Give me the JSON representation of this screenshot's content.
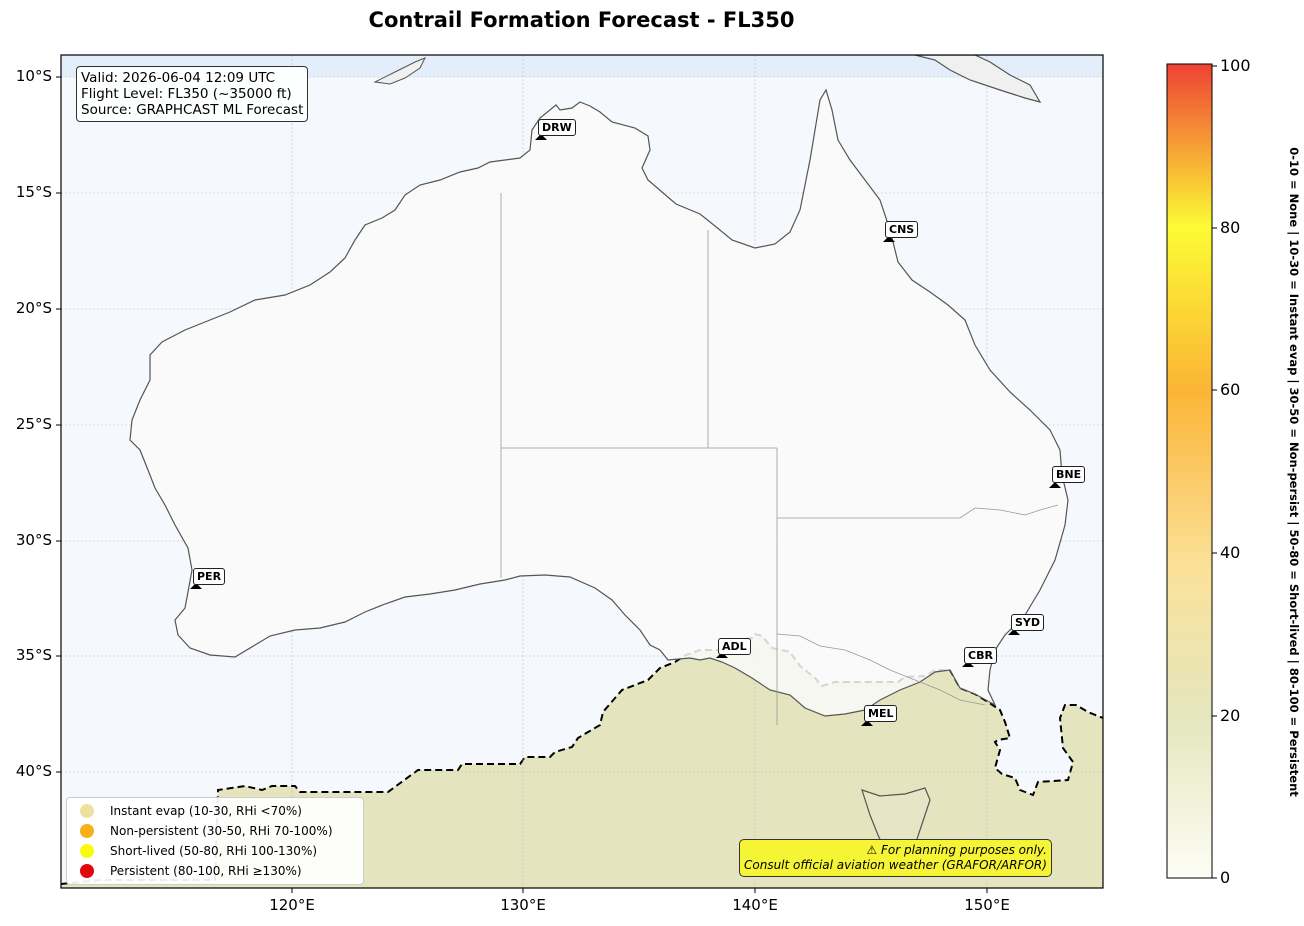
{
  "title": "Contrail Formation Forecast - FL350",
  "info": {
    "valid": "Valid: 2026-06-04 12:09 UTC",
    "flight_level": "Flight Level: FL350 (~35000 ft)",
    "source": "Source: GRAPHCAST ML Forecast"
  },
  "axes": {
    "lat_ticks": [
      "10°S",
      "15°S",
      "20°S",
      "25°S",
      "30°S",
      "35°S",
      "40°S"
    ],
    "lon_ticks": [
      "120°E",
      "130°E",
      "140°E",
      "150°E"
    ]
  },
  "colorbar": {
    "ticks": [
      "100",
      "80",
      "60",
      "40",
      "20",
      "0"
    ],
    "label": "0-10 = None  |  10-30 = Instant evap  |  30-50 = Non-persist  |  50-80 = Short-lived  |  80-100 = Persistent",
    "colors": [
      "#fdfdf5",
      "#e4e6bd",
      "#fbe19a",
      "#fbb535",
      "#fcfb35",
      "#ef4235"
    ]
  },
  "legend": [
    {
      "label": "Instant evap (10-30, RHi <70%)",
      "color": "#f0e0a0"
    },
    {
      "label": "Non-persistent (30-50, RHi 70-100%)",
      "color": "#f7b019"
    },
    {
      "label": "Short-lived (50-80, RHi 100-130%)",
      "color": "#fafa10"
    },
    {
      "label": "Persistent (80-100, RHi ≥130%)",
      "color": "#e00808"
    }
  ],
  "warning": {
    "line1": "⚠ For planning purposes only.",
    "line2": "Consult official aviation weather (GRAFOR/ARFOR)"
  },
  "cities": [
    {
      "code": "DRW",
      "name": "Darwin"
    },
    {
      "code": "CNS",
      "name": "Cairns"
    },
    {
      "code": "BNE",
      "name": "Brisbane"
    },
    {
      "code": "PER",
      "name": "Perth"
    },
    {
      "code": "SYD",
      "name": "Sydney"
    },
    {
      "code": "ADL",
      "name": "Adelaide"
    },
    {
      "code": "CBR",
      "name": "Canberra"
    },
    {
      "code": "MEL",
      "name": "Melbourne"
    }
  ],
  "colors": {
    "ocean": "#f5f9fd",
    "land": "#fafafa",
    "contrail_field": "#e4e4be",
    "coastline": "#555555",
    "warning_bg": "#f5f535"
  }
}
